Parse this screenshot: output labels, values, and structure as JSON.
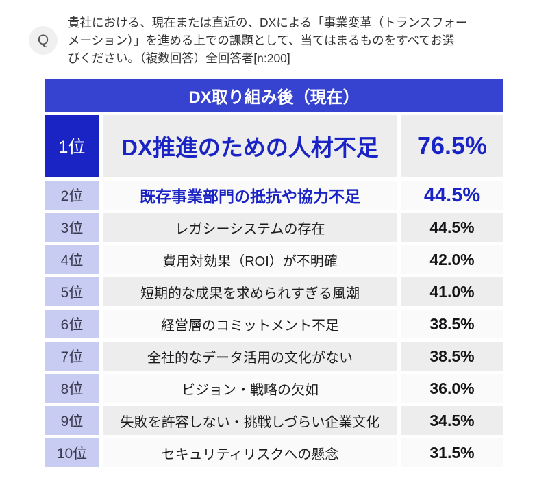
{
  "question": {
    "icon": "Q",
    "lines": [
      "貴社における、現在または直近の、DXによる「事業変革（トランスフォー",
      "メーション）」を進める上での課題として、当てはまるものをすべてお選",
      "びください。（複数回答）全回答者[n:200]"
    ],
    "full_text": "貴社における、現在または直近の、DXによる「事業変革（トランスフォーメーション）」を進める上での課題として、当てはまるものをすべてお選びください。（複数回答）全回答者[n:200]"
  },
  "table": {
    "header": "DX取り組み後（現在）",
    "rows": [
      {
        "rank": "1位",
        "label": "DX推進のための人材不足",
        "value": "76.5%"
      },
      {
        "rank": "2位",
        "label": "既存事業部門の抵抗や協力不足",
        "value": "44.5%"
      },
      {
        "rank": "3位",
        "label": "レガシーシステムの存在",
        "value": "44.5%"
      },
      {
        "rank": "4位",
        "label": "費用対効果（ROI）が不明確",
        "value": "42.0%"
      },
      {
        "rank": "5位",
        "label": "短期的な成果を求められすぎる風潮",
        "value": "41.0%"
      },
      {
        "rank": "6位",
        "label": "経営層のコミットメント不足",
        "value": "38.5%"
      },
      {
        "rank": "7位",
        "label": "全社的なデータ活用の文化がない",
        "value": "38.5%"
      },
      {
        "rank": "8位",
        "label": "ビジョン・戦略の欠如",
        "value": "36.0%"
      },
      {
        "rank": "9位",
        "label": "失敗を許容しない・挑戦しづらい企業文化",
        "value": "34.5%"
      },
      {
        "rank": "10位",
        "label": "セキュリティリスクへの懸念",
        "value": "31.5%"
      }
    ],
    "colors": {
      "header_bg": "#3642d0",
      "rank1_bg": "#1a23c4",
      "rank_bg": "#c9ccf2",
      "row_odd_bg": "#ededed",
      "row_even_bg": "#fafafa",
      "accent_blue": "#1a23c4"
    }
  },
  "chart_data": {
    "type": "table",
    "title": "DX取り組み後（現在）",
    "question": "貴社における、現在または直近の、DXによる「事業変革（トランスフォーメーション）」を進める上での課題として、当てはまるものをすべてお選びください。（複数回答）全回答者[n:200]",
    "sample_size": 200,
    "unit": "%",
    "ranks": [
      "1位",
      "2位",
      "3位",
      "4位",
      "5位",
      "6位",
      "7位",
      "8位",
      "9位",
      "10位"
    ],
    "categories": [
      "DX推進のための人材不足",
      "既存事業部門の抵抗や協力不足",
      "レガシーシステムの存在",
      "費用対効果（ROI）が不明確",
      "短期的な成果を求められすぎる風潮",
      "経営層のコミットメント不足",
      "全社的なデータ活用の文化がない",
      "ビジョン・戦略の欠如",
      "失敗を許容しない・挑戦しづらい企業文化",
      "セキュリティリスクへの懸念"
    ],
    "values": [
      76.5,
      44.5,
      44.5,
      42.0,
      41.0,
      38.5,
      38.5,
      36.0,
      34.5,
      31.5
    ]
  }
}
